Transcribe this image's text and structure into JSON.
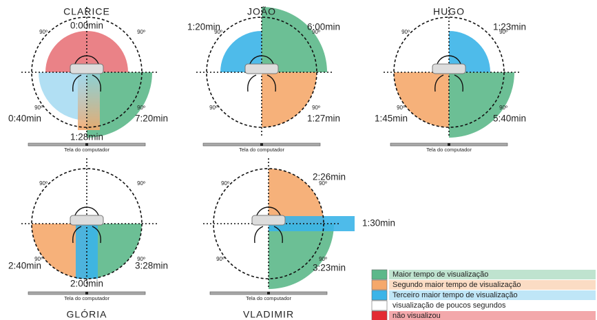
{
  "panels": [
    {
      "name": "CLARICE",
      "times": [
        "0:00min",
        "0:40min",
        "7:20min",
        "1:28min"
      ],
      "degrees": [
        "90º",
        "90º",
        "90º",
        "90º"
      ],
      "screen": "Tela do computador"
    },
    {
      "name": "JOÃO",
      "times": [
        "1:20min",
        "6:00min",
        "1:27min"
      ],
      "degrees": [
        "90º",
        "90º",
        "90º",
        "90º"
      ],
      "screen": "Tela do computador"
    },
    {
      "name": "HUGO",
      "times": [
        "1:23min",
        "1:45min",
        "5:40min"
      ],
      "degrees": [
        "90º",
        "90º",
        "90º",
        "90º"
      ],
      "screen": "Tela do computador"
    },
    {
      "name": "GLÓRIA",
      "times": [
        "2:40min",
        "3:28min",
        "2:00min"
      ],
      "degrees": [
        "90º",
        "90º",
        "90º",
        "90º"
      ],
      "screen": "Tela do computador"
    },
    {
      "name": "VLADIMIR",
      "times": [
        "2:26min",
        "1:30min",
        "3:23min"
      ],
      "degrees": [
        "90º",
        "90º",
        "90º",
        "90º"
      ],
      "screen": "Tela do computador"
    }
  ],
  "legend": [
    "Maior tempo de visualização",
    "Segundo maior tempo de visualização",
    "Terceiro maior tempo de visualização",
    "visualização de poucos segundos",
    "não visualizou"
  ]
}
